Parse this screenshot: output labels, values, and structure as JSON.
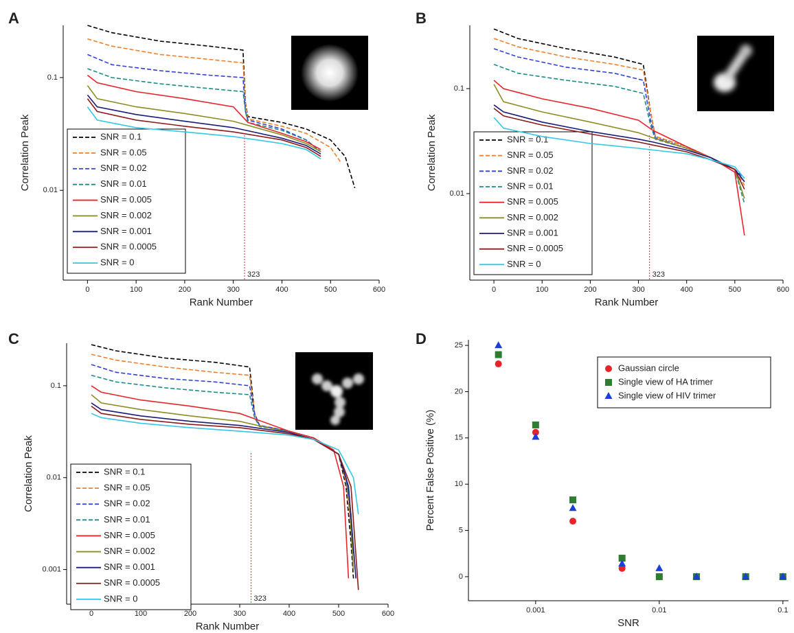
{
  "chart_data": [
    {
      "type": "line",
      "panel": "A",
      "xlabel": "Rank Number",
      "ylabel": "Correlation Peak",
      "xlim": [
        -50,
        600
      ],
      "xticks": [
        0,
        100,
        200,
        300,
        400,
        500,
        600
      ],
      "ylim": [
        0.0016,
        0.29
      ],
      "yticks": [
        0.01,
        0.1
      ],
      "ylog": true,
      "vline": 323,
      "legend": "lower left",
      "series": [
        {
          "name": "SNR = 0.1",
          "color": "#000000",
          "style": "dashed",
          "x": [
            0,
            50,
            150,
            250,
            320,
            325,
            330,
            400,
            450,
            500,
            530,
            550
          ],
          "values": [
            0.29,
            0.25,
            0.21,
            0.19,
            0.175,
            0.06,
            0.045,
            0.04,
            0.035,
            0.028,
            0.02,
            0.0105
          ]
        },
        {
          "name": "SNR = 0.05",
          "color": "#f07f2a",
          "style": "dashed",
          "x": [
            0,
            50,
            150,
            250,
            320,
            325,
            330,
            400,
            450,
            500,
            520
          ],
          "values": [
            0.22,
            0.19,
            0.16,
            0.145,
            0.135,
            0.06,
            0.043,
            0.037,
            0.032,
            0.024,
            0.018
          ]
        },
        {
          "name": "SNR = 0.02",
          "color": "#2f3fd9",
          "style": "dashed",
          "x": [
            0,
            50,
            150,
            250,
            320,
            325,
            330,
            400,
            450,
            480
          ],
          "values": [
            0.16,
            0.13,
            0.115,
            0.105,
            0.1,
            0.05,
            0.042,
            0.035,
            0.028,
            0.022
          ]
        },
        {
          "name": "SNR = 0.01",
          "color": "#1d8a8a",
          "style": "dashed",
          "x": [
            0,
            50,
            150,
            250,
            320,
            325,
            330,
            400,
            450,
            480
          ],
          "values": [
            0.12,
            0.1,
            0.088,
            0.08,
            0.075,
            0.05,
            0.04,
            0.034,
            0.028,
            0.022
          ]
        },
        {
          "name": "SNR = 0.005",
          "color": "#e8242a",
          "style": "solid",
          "x": [
            0,
            20,
            100,
            200,
            300,
            330,
            400,
            450,
            480
          ],
          "values": [
            0.105,
            0.09,
            0.075,
            0.065,
            0.055,
            0.04,
            0.032,
            0.027,
            0.023
          ]
        },
        {
          "name": "SNR = 0.002",
          "color": "#8c8c24",
          "style": "solid",
          "x": [
            0,
            20,
            100,
            200,
            300,
            400,
            450,
            480
          ],
          "values": [
            0.085,
            0.065,
            0.055,
            0.048,
            0.041,
            0.031,
            0.026,
            0.022
          ]
        },
        {
          "name": "SNR = 0.001",
          "color": "#1a1a7a",
          "style": "solid",
          "x": [
            0,
            20,
            100,
            200,
            300,
            400,
            450,
            480
          ],
          "values": [
            0.07,
            0.055,
            0.047,
            0.041,
            0.036,
            0.029,
            0.025,
            0.021
          ]
        },
        {
          "name": "SNR = 0.0005",
          "color": "#8b1a1a",
          "style": "solid",
          "x": [
            0,
            20,
            100,
            200,
            300,
            400,
            450,
            480
          ],
          "values": [
            0.065,
            0.05,
            0.042,
            0.037,
            0.033,
            0.028,
            0.024,
            0.02
          ]
        },
        {
          "name": "SNR = 0",
          "color": "#33c6e8",
          "style": "solid",
          "x": [
            0,
            20,
            100,
            200,
            300,
            400,
            450,
            480
          ],
          "values": [
            0.055,
            0.042,
            0.036,
            0.033,
            0.03,
            0.026,
            0.023,
            0.019
          ]
        }
      ]
    },
    {
      "type": "line",
      "panel": "B",
      "xlabel": "Rank Number",
      "ylabel": "Correlation Peak",
      "xlim": [
        -50,
        600
      ],
      "xticks": [
        0,
        100,
        200,
        300,
        400,
        500,
        600
      ],
      "ylim": [
        0.0015,
        0.4
      ],
      "yticks": [
        0.01,
        0.1
      ],
      "ylog": true,
      "vline": 323,
      "legend": "lower left",
      "series": [
        {
          "name": "SNR = 0.1",
          "color": "#000000",
          "style": "dashed",
          "x": [
            0,
            50,
            150,
            250,
            310,
            325,
            335,
            400,
            450,
            500,
            520
          ],
          "values": [
            0.37,
            0.3,
            0.24,
            0.2,
            0.17,
            0.06,
            0.035,
            0.028,
            0.022,
            0.017,
            0.013
          ]
        },
        {
          "name": "SNR = 0.05",
          "color": "#f07f2a",
          "style": "dashed",
          "x": [
            0,
            50,
            150,
            250,
            310,
            325,
            335,
            400,
            450,
            500,
            520
          ],
          "values": [
            0.3,
            0.25,
            0.2,
            0.17,
            0.15,
            0.06,
            0.035,
            0.028,
            0.022,
            0.017,
            0.012
          ]
        },
        {
          "name": "SNR = 0.02",
          "color": "#2f3fd9",
          "style": "dashed",
          "x": [
            0,
            50,
            150,
            250,
            310,
            325,
            335,
            400,
            450,
            500,
            520
          ],
          "values": [
            0.24,
            0.2,
            0.16,
            0.14,
            0.12,
            0.05,
            0.034,
            0.027,
            0.022,
            0.017,
            0.014
          ]
        },
        {
          "name": "SNR = 0.01",
          "color": "#1d8a8a",
          "style": "dashed",
          "x": [
            0,
            50,
            150,
            250,
            310,
            325,
            335,
            400,
            450,
            500,
            520
          ],
          "values": [
            0.17,
            0.14,
            0.12,
            0.105,
            0.09,
            0.045,
            0.033,
            0.027,
            0.022,
            0.017,
            0.008
          ]
        },
        {
          "name": "SNR = 0.005",
          "color": "#e8242a",
          "style": "solid",
          "x": [
            0,
            20,
            100,
            200,
            300,
            330,
            400,
            450,
            500,
            520
          ],
          "values": [
            0.12,
            0.1,
            0.08,
            0.065,
            0.05,
            0.04,
            0.028,
            0.022,
            0.016,
            0.004
          ]
        },
        {
          "name": "SNR = 0.002",
          "color": "#8c8c24",
          "style": "solid",
          "x": [
            0,
            20,
            100,
            200,
            300,
            330,
            400,
            450,
            500,
            520
          ],
          "values": [
            0.11,
            0.075,
            0.06,
            0.048,
            0.038,
            0.034,
            0.027,
            0.022,
            0.017,
            0.009
          ]
        },
        {
          "name": "SNR = 0.001",
          "color": "#1a1a7a",
          "style": "solid",
          "x": [
            0,
            20,
            100,
            200,
            300,
            330,
            400,
            450,
            500,
            520
          ],
          "values": [
            0.07,
            0.06,
            0.048,
            0.039,
            0.033,
            0.031,
            0.026,
            0.022,
            0.017,
            0.013
          ]
        },
        {
          "name": "SNR = 0.0005",
          "color": "#8b1a1a",
          "style": "solid",
          "x": [
            0,
            20,
            100,
            200,
            300,
            330,
            400,
            450,
            500,
            520
          ],
          "values": [
            0.065,
            0.055,
            0.045,
            0.037,
            0.031,
            0.029,
            0.025,
            0.021,
            0.017,
            0.011
          ]
        },
        {
          "name": "SNR = 0",
          "color": "#33c6e8",
          "style": "solid",
          "x": [
            0,
            20,
            100,
            200,
            300,
            330,
            400,
            450,
            500,
            520
          ],
          "values": [
            0.053,
            0.042,
            0.035,
            0.03,
            0.027,
            0.026,
            0.024,
            0.021,
            0.018,
            0.014
          ]
        }
      ]
    },
    {
      "type": "line",
      "panel": "C",
      "xlabel": "Rank Number",
      "ylabel": "Correlation Peak",
      "xlim": [
        -50,
        600
      ],
      "xticks": [
        0,
        100,
        200,
        300,
        400,
        500,
        600
      ],
      "ylim": [
        0.00042,
        0.29
      ],
      "yticks": [
        0.001,
        0.01,
        0.1
      ],
      "ylog": true,
      "vline": 323,
      "legend": "lower left",
      "series": [
        {
          "name": "SNR = 0.1",
          "color": "#000000",
          "style": "dashed",
          "x": [
            0,
            50,
            150,
            250,
            320,
            330,
            340,
            400,
            450,
            500,
            515,
            525,
            530
          ],
          "values": [
            0.28,
            0.24,
            0.2,
            0.18,
            0.16,
            0.05,
            0.037,
            0.032,
            0.027,
            0.018,
            0.008,
            0.002,
            0.0008
          ]
        },
        {
          "name": "SNR = 0.05",
          "color": "#f07f2a",
          "style": "dashed",
          "x": [
            0,
            50,
            150,
            250,
            320,
            330,
            340,
            400,
            450,
            500,
            515,
            525,
            530
          ],
          "values": [
            0.22,
            0.19,
            0.16,
            0.14,
            0.13,
            0.05,
            0.037,
            0.032,
            0.027,
            0.018,
            0.009,
            0.003,
            0.001
          ]
        },
        {
          "name": "SNR = 0.02",
          "color": "#2f3fd9",
          "style": "dashed",
          "x": [
            0,
            50,
            150,
            250,
            320,
            330,
            340,
            400,
            450,
            500,
            515,
            525,
            530
          ],
          "values": [
            0.17,
            0.14,
            0.12,
            0.11,
            0.1,
            0.05,
            0.037,
            0.032,
            0.027,
            0.018,
            0.01,
            0.004,
            0.0015
          ]
        },
        {
          "name": "SNR = 0.01",
          "color": "#1d8a8a",
          "style": "dashed",
          "x": [
            0,
            50,
            150,
            250,
            320,
            330,
            340,
            400,
            450,
            500,
            515,
            525,
            530
          ],
          "values": [
            0.13,
            0.11,
            0.095,
            0.085,
            0.08,
            0.045,
            0.036,
            0.032,
            0.027,
            0.018,
            0.01,
            0.004,
            0.0015
          ]
        },
        {
          "name": "SNR = 0.005",
          "color": "#e8242a",
          "style": "solid",
          "x": [
            0,
            20,
            100,
            200,
            300,
            400,
            450,
            490,
            510,
            520
          ],
          "values": [
            0.1,
            0.085,
            0.07,
            0.06,
            0.05,
            0.032,
            0.027,
            0.02,
            0.008,
            0.0008
          ]
        },
        {
          "name": "SNR = 0.002",
          "color": "#8c8c24",
          "style": "solid",
          "x": [
            0,
            20,
            100,
            200,
            300,
            400,
            450,
            500,
            520,
            530
          ],
          "values": [
            0.08,
            0.065,
            0.055,
            0.047,
            0.041,
            0.031,
            0.026,
            0.018,
            0.008,
            0.001
          ]
        },
        {
          "name": "SNR = 0.001",
          "color": "#1a1a7a",
          "style": "solid",
          "x": [
            0,
            20,
            100,
            200,
            300,
            400,
            450,
            500,
            520,
            535
          ],
          "values": [
            0.065,
            0.055,
            0.047,
            0.041,
            0.037,
            0.031,
            0.026,
            0.018,
            0.008,
            0.0008
          ]
        },
        {
          "name": "SNR = 0.0005",
          "color": "#8b1a1a",
          "style": "solid",
          "x": [
            0,
            20,
            100,
            200,
            300,
            400,
            450,
            500,
            525,
            540
          ],
          "values": [
            0.06,
            0.05,
            0.043,
            0.038,
            0.035,
            0.03,
            0.026,
            0.018,
            0.008,
            0.0006
          ]
        },
        {
          "name": "SNR = 0",
          "color": "#33c6e8",
          "style": "solid",
          "x": [
            0,
            20,
            100,
            200,
            300,
            400,
            450,
            500,
            530,
            540
          ],
          "values": [
            0.05,
            0.045,
            0.039,
            0.035,
            0.032,
            0.029,
            0.026,
            0.02,
            0.01,
            0.004
          ]
        }
      ]
    },
    {
      "type": "scatter",
      "panel": "D",
      "xlabel": "SNR",
      "ylabel": "Percent False Positive (%)",
      "xlim": [
        0.000286,
        0.111
      ],
      "xticks": [
        0.001,
        0.01,
        0.1
      ],
      "xlog": true,
      "ylim": [
        -2.6,
        25.6
      ],
      "yticks": [
        0,
        5,
        10,
        15,
        20,
        25
      ],
      "legend": "upper right",
      "x": [
        0.0005,
        0.001,
        0.002,
        0.005,
        0.01,
        0.02,
        0.05,
        0.1
      ],
      "series": [
        {
          "name": "Gaussian circle",
          "color": "#e8242a",
          "marker": "circle",
          "values": [
            23,
            15.6,
            6,
            0.9,
            0,
            0,
            0,
            0
          ]
        },
        {
          "name": "Single view of HA trimer",
          "color": "#2e7d32",
          "marker": "square",
          "values": [
            24,
            16.4,
            8.3,
            2,
            0,
            0,
            0,
            0
          ]
        },
        {
          "name": "Single view of HIV trimer",
          "color": "#1c3fd8",
          "marker": "triangle",
          "values": [
            25,
            15.1,
            7.4,
            1.4,
            0.9,
            0,
            0,
            0
          ]
        }
      ]
    }
  ]
}
